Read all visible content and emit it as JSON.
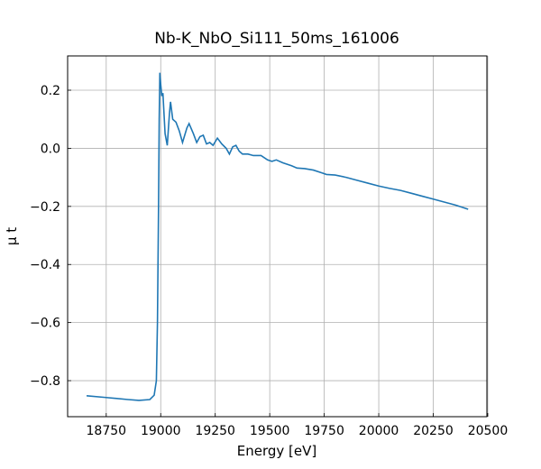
{
  "chart_data": {
    "type": "line",
    "title": "Nb-K_NbO_Si111_50ms_161006",
    "xlabel": "Energy [eV]",
    "ylabel": "μ t",
    "x": [
      18660,
      18750,
      18850,
      18900,
      18950,
      18970,
      18980,
      18985,
      18990,
      18993,
      18996,
      19000,
      19005,
      19010,
      19020,
      19030,
      19040,
      19045,
      19055,
      19070,
      19085,
      19100,
      19120,
      19130,
      19150,
      19165,
      19180,
      19195,
      19210,
      19225,
      19240,
      19260,
      19280,
      19300,
      19315,
      19330,
      19345,
      19360,
      19375,
      19400,
      19425,
      19460,
      19490,
      19510,
      19530,
      19560,
      19600,
      19625,
      19660,
      19700,
      19740,
      19760,
      19800,
      19850,
      19900,
      19950,
      20000,
      20050,
      20100,
      20150,
      20200,
      20250,
      20300,
      20350,
      20410
    ],
    "series": [
      {
        "name": "μ t",
        "color": "#1f77b4",
        "values": [
          -0.852,
          -0.858,
          -0.865,
          -0.868,
          -0.865,
          -0.85,
          -0.8,
          -0.6,
          -0.2,
          0.1,
          0.26,
          0.22,
          0.18,
          0.19,
          0.05,
          0.01,
          0.12,
          0.16,
          0.1,
          0.09,
          0.06,
          0.02,
          0.07,
          0.085,
          0.05,
          0.02,
          0.04,
          0.045,
          0.015,
          0.02,
          0.01,
          0.035,
          0.015,
          0.0,
          -0.02,
          0.005,
          0.01,
          -0.01,
          -0.02,
          -0.02,
          -0.025,
          -0.025,
          -0.04,
          -0.045,
          -0.04,
          -0.05,
          -0.06,
          -0.068,
          -0.07,
          -0.075,
          -0.085,
          -0.09,
          -0.092,
          -0.1,
          -0.11,
          -0.12,
          -0.13,
          -0.138,
          -0.145,
          -0.155,
          -0.165,
          -0.175,
          -0.185,
          -0.195,
          -0.21
        ]
      }
    ],
    "xlim": [
      18573,
      20496
    ],
    "xticks": [
      18750,
      19000,
      19250,
      19500,
      19750,
      20000,
      20250,
      20500
    ],
    "ylim": [
      -0.924,
      0.318
    ],
    "yticks": [
      0.2,
      {
        "value": 0.0,
        "label": "0.0"
      },
      {
        "value": -0.2,
        "label": "−0.2"
      },
      {
        "value": -0.4,
        "label": "−0.4"
      },
      {
        "value": -0.6,
        "label": "−0.6"
      },
      {
        "value": -0.8,
        "label": "−0.8"
      }
    ],
    "grid": true
  }
}
